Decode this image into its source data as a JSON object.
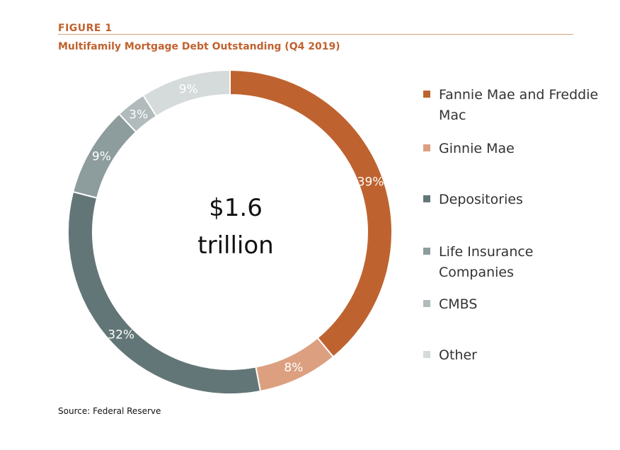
{
  "figure_label": "FIGURE 1",
  "title": "Multifamily Mortgage Debt Outstanding (Q4 2019)",
  "source": "Source: Federal Reserve",
  "center_text": [
    "$1.6",
    "trillion"
  ],
  "chart_data": {
    "type": "pie",
    "title": "Multifamily Mortgage Debt Outstanding (Q4 2019)",
    "total_label": "$1.6 trillion",
    "slices": [
      {
        "name": "Fannie Mae and Freddie Mac",
        "value": 39,
        "label": "39%",
        "color": "#be6330"
      },
      {
        "name": "Ginnie Mae",
        "value": 8,
        "label": "8%",
        "color": "#dca080"
      },
      {
        "name": "Depositories",
        "value": 32,
        "label": "32%",
        "color": "#637677"
      },
      {
        "name": "Life Insurance Companies",
        "value": 9,
        "label": "9%",
        "color": "#8d9c9d"
      },
      {
        "name": "CMBS",
        "value": 3,
        "label": "3%",
        "color": "#b1bbbc"
      },
      {
        "name": "Other",
        "value": 9,
        "label": "9%",
        "color": "#d5dadb"
      }
    ],
    "legend_position": "right"
  }
}
